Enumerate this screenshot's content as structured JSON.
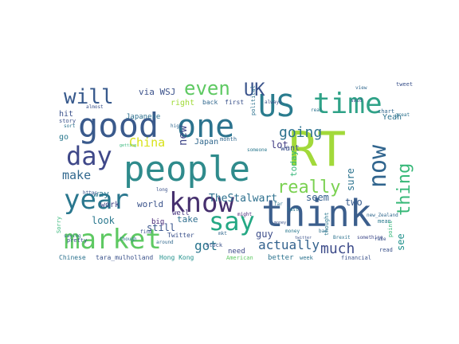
{
  "wordcloud": {
    "words": [
      {
        "text": "RT",
        "color": "#a2d93a"
      },
      {
        "text": "think",
        "color": "#3b5e8c"
      },
      {
        "text": "people",
        "color": "#2f8b8c"
      },
      {
        "text": "good",
        "color": "#3a5a8c"
      },
      {
        "text": "one",
        "color": "#2c738e"
      },
      {
        "text": "US",
        "color": "#2a7c8e"
      },
      {
        "text": "time",
        "color": "#2fa287"
      },
      {
        "text": "market",
        "color": "#5ec962"
      },
      {
        "text": "know",
        "color": "#46306e"
      },
      {
        "text": "year",
        "color": "#2a778e"
      },
      {
        "text": "day",
        "color": "#3f4889"
      },
      {
        "text": "say",
        "color": "#24a884"
      },
      {
        "text": "now",
        "color": "#31658e"
      },
      {
        "text": "will",
        "color": "#37598c"
      },
      {
        "text": "even",
        "color": "#5ec962"
      },
      {
        "text": "UK",
        "color": "#3a538b"
      },
      {
        "text": "really",
        "color": "#7ad151"
      },
      {
        "text": "thing",
        "color": "#37b878"
      },
      {
        "text": "going",
        "color": "#2c728e"
      },
      {
        "text": "much",
        "color": "#3e4c8a"
      },
      {
        "text": "actually",
        "color": "#33628d"
      },
      {
        "text": "got",
        "color": "#2b758e"
      },
      {
        "text": "make",
        "color": "#31688e"
      },
      {
        "text": "China",
        "color": "#d8e219"
      },
      {
        "text": "new",
        "color": "#3f4788"
      },
      {
        "text": "TheStalwart",
        "color": "#2d708e"
      },
      {
        "text": "guy",
        "color": "#3d4d8a"
      },
      {
        "text": "sure",
        "color": "#2c738e"
      },
      {
        "text": "seem",
        "color": "#355f8d"
      },
      {
        "text": "lot",
        "color": "#433e85"
      },
      {
        "text": "two",
        "color": "#375b8d"
      },
      {
        "text": "see",
        "color": "#21918c"
      },
      {
        "text": "look",
        "color": "#2a788e"
      },
      {
        "text": "still",
        "color": "#39558c"
      },
      {
        "text": "take",
        "color": "#2e6e8e"
      },
      {
        "text": "way",
        "color": "#2a768e"
      },
      {
        "text": "world",
        "color": "#3a538b"
      },
      {
        "text": "work",
        "color": "#404588"
      },
      {
        "text": "well",
        "color": "#46327e"
      },
      {
        "text": "Japan",
        "color": "#31688e"
      },
      {
        "text": "Japanese",
        "color": "#2d708e"
      },
      {
        "text": "via WSJ",
        "color": "#3b528b"
      },
      {
        "text": "want",
        "color": "#3b528b"
      },
      {
        "text": "today",
        "color": "#35b779"
      },
      {
        "text": "hit",
        "color": "#3b528b"
      },
      {
        "text": "go",
        "color": "#2a788e"
      },
      {
        "text": "Yeah",
        "color": "#2c728e"
      },
      {
        "text": "right",
        "color": "#a0da39"
      },
      {
        "text": "back",
        "color": "#31688e"
      },
      {
        "text": "first",
        "color": "#3b528b"
      },
      {
        "text": "need",
        "color": "#3e4a89"
      },
      {
        "text": "better",
        "color": "#2c728e"
      },
      {
        "text": "Twitter",
        "color": "#3b528b"
      },
      {
        "text": "big",
        "color": "#482878"
      },
      {
        "text": "Chinese",
        "color": "#2c728e"
      },
      {
        "text": "tara_mulholland",
        "color": "#3b528b"
      },
      {
        "text": "Hong Kong",
        "color": "#21918c"
      },
      {
        "text": "American",
        "color": "#5ec962"
      },
      {
        "text": "financial",
        "color": "#3b528b"
      },
      {
        "text": "thought",
        "color": "#2a788e"
      },
      {
        "text": "Sorry",
        "color": "#35b779"
      },
      {
        "text": "pretty",
        "color": "#3b528b"
      },
      {
        "text": "though",
        "color": "#2c728e"
      },
      {
        "text": "saying",
        "color": "#31688e"
      },
      {
        "text": "something",
        "color": "#3e4989"
      },
      {
        "text": "story",
        "color": "#3b528b"
      },
      {
        "text": "sort",
        "color": "#2c728e"
      },
      {
        "text": "chart",
        "color": "#31688e"
      },
      {
        "text": "tweet",
        "color": "#3b528b"
      },
      {
        "text": "mean",
        "color": "#2a788e"
      },
      {
        "text": "point",
        "color": "#35b779"
      },
      {
        "text": "read",
        "color": "#3b528b"
      },
      {
        "text": "week",
        "color": "#2c728e"
      },
      {
        "text": "month",
        "color": "#31688e"
      },
      {
        "text": "stock",
        "color": "#3b528b"
      },
      {
        "text": "might",
        "color": "#482878"
      },
      {
        "text": "last",
        "color": "#2a788e"
      },
      {
        "text": "said",
        "color": "#3b528b"
      },
      {
        "text": "bad",
        "color": "#2c728e"
      },
      {
        "text": "mkt",
        "color": "#31688e"
      },
      {
        "text": "always",
        "color": "#3b528b"
      },
      {
        "text": "political",
        "color": "#2c728e"
      },
      {
        "text": "https",
        "color": "#3b528b"
      },
      {
        "text": "around",
        "color": "#31688e"
      },
      {
        "text": "someone",
        "color": "#2a788e"
      },
      {
        "text": "almost",
        "color": "#3b528b"
      },
      {
        "text": "real",
        "color": "#2c728e"
      },
      {
        "text": "view",
        "color": "#31688e"
      },
      {
        "text": "find",
        "color": "#3b528b"
      },
      {
        "text": "far",
        "color": "#2c728e"
      },
      {
        "text": "long",
        "color": "#3b528b"
      },
      {
        "text": "money",
        "color": "#2a788e"
      },
      {
        "text": "new_Zealand",
        "color": "#31688e"
      },
      {
        "text": "Brexit",
        "color": "#2c728e"
      },
      {
        "text": "money",
        "color": "#3b528b"
      },
      {
        "text": "getting",
        "color": "#35b779"
      },
      {
        "text": "twitter",
        "color": "#3b528b"
      },
      {
        "text": "great",
        "color": "#2c728e"
      },
      {
        "text": "high",
        "color": "#31688e"
      },
      {
        "text": "rate",
        "color": "#3b528b"
      }
    ]
  }
}
